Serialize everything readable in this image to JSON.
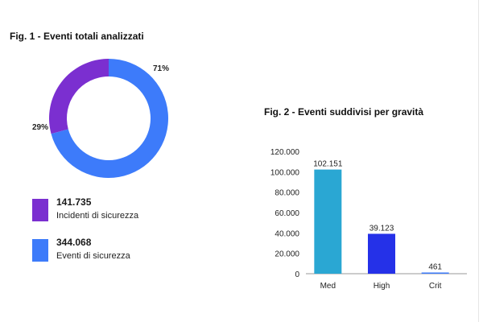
{
  "chart_data": [
    {
      "type": "pie",
      "title": "Fig. 1 - Eventi totali analizzati",
      "labels": [
        "Incidenti di sicurezza",
        "Eventi di sicurezza"
      ],
      "values": [
        141735,
        344068
      ],
      "value_labels": [
        "141.735",
        "344.068"
      ],
      "percent_labels": [
        "29%",
        "71%"
      ],
      "colors": [
        "#7b2fd0",
        "#3d7bfa"
      ],
      "legend_placement": "bottom"
    },
    {
      "type": "bar",
      "title": "Fig. 2 - Eventi suddivisi per gravità",
      "categories": [
        "Med",
        "High",
        "Crit"
      ],
      "values": [
        102151,
        39123,
        461
      ],
      "value_labels": [
        "102.151",
        "39.123",
        "461"
      ],
      "colors": [
        "#2aa7d3",
        "#2531e8",
        "#3d7bfa"
      ],
      "ylim": [
        0,
        120000
      ],
      "yticks": [
        0,
        20000,
        40000,
        60000,
        80000,
        100000,
        120000
      ],
      "ytick_labels": [
        "0",
        "20.000",
        "40.000",
        "60.000",
        "80.000",
        "100.000",
        "120.000"
      ],
      "grid": false,
      "xlabel": "",
      "ylabel": ""
    }
  ]
}
